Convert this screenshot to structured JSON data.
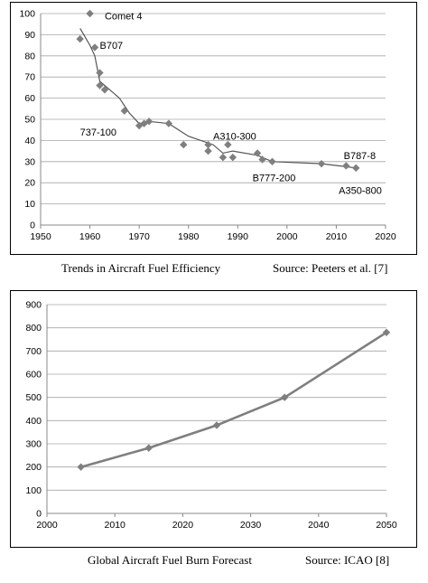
{
  "figure_1": {
    "caption_left": "Trends in Aircraft Fuel Efficiency",
    "caption_right": "Source: Peeters et al. [7]"
  },
  "figure_2": {
    "caption_left": "Global Aircraft Fuel Burn Forecast",
    "caption_right": "Source: ICAO [8]"
  },
  "colors": {
    "series": "#7f7f7f",
    "gridline": "#a6a6a6",
    "axis": "#888888",
    "frame": "#000000"
  },
  "chart_data": [
    {
      "type": "scatter",
      "title": "",
      "xlabel": "",
      "ylabel": "",
      "xlim": [
        1950,
        2020
      ],
      "ylim": [
        0,
        100
      ],
      "xticks": [
        1950,
        1960,
        1970,
        1980,
        1990,
        2000,
        2010,
        2020
      ],
      "yticks": [
        0,
        10,
        20,
        30,
        40,
        50,
        60,
        70,
        80,
        90,
        100
      ],
      "grid": "horizontal",
      "legend": "none",
      "points": [
        {
          "x": 1958,
          "y": 88
        },
        {
          "x": 1960,
          "y": 100
        },
        {
          "x": 1961,
          "y": 84
        },
        {
          "x": 1962,
          "y": 72
        },
        {
          "x": 1962,
          "y": 66
        },
        {
          "x": 1963,
          "y": 64
        },
        {
          "x": 1967,
          "y": 54
        },
        {
          "x": 1970,
          "y": 47
        },
        {
          "x": 1971,
          "y": 48
        },
        {
          "x": 1972,
          "y": 49
        },
        {
          "x": 1976,
          "y": 48
        },
        {
          "x": 1979,
          "y": 38
        },
        {
          "x": 1984,
          "y": 38
        },
        {
          "x": 1984,
          "y": 35
        },
        {
          "x": 1987,
          "y": 32
        },
        {
          "x": 1988,
          "y": 38
        },
        {
          "x": 1989,
          "y": 32
        },
        {
          "x": 1994,
          "y": 34
        },
        {
          "x": 1995,
          "y": 31
        },
        {
          "x": 1997,
          "y": 30
        },
        {
          "x": 2007,
          "y": 29
        },
        {
          "x": 2012,
          "y": 28
        },
        {
          "x": 2014,
          "y": 27
        }
      ],
      "trend_line": [
        {
          "x": 1958,
          "y": 93
        },
        {
          "x": 1959,
          "y": 89
        },
        {
          "x": 1960,
          "y": 85
        },
        {
          "x": 1961,
          "y": 80
        },
        {
          "x": 1962,
          "y": 68
        },
        {
          "x": 1964,
          "y": 64
        },
        {
          "x": 1966,
          "y": 60
        },
        {
          "x": 1968,
          "y": 53
        },
        {
          "x": 1970,
          "y": 48
        },
        {
          "x": 1972,
          "y": 49
        },
        {
          "x": 1976,
          "y": 48
        },
        {
          "x": 1980,
          "y": 42
        },
        {
          "x": 1985,
          "y": 38
        },
        {
          "x": 1987,
          "y": 34
        },
        {
          "x": 1989,
          "y": 35
        },
        {
          "x": 1994,
          "y": 33
        },
        {
          "x": 1997,
          "y": 30
        },
        {
          "x": 2007,
          "y": 29
        },
        {
          "x": 2014,
          "y": 27
        }
      ],
      "annotations": [
        {
          "text": "Comet 4",
          "x": 1963,
          "y": 99
        },
        {
          "text": "B707",
          "x": 1962,
          "y": 85
        },
        {
          "text": "737-100",
          "x": 1958,
          "y": 44
        },
        {
          "text": "A310-300",
          "x": 1985,
          "y": 42
        },
        {
          "text": "B777-200",
          "x": 1993,
          "y": 22.5
        },
        {
          "text": "B787-8",
          "x": 2011.5,
          "y": 33
        },
        {
          "text": "A350-800",
          "x": 2010.5,
          "y": 16.5
        }
      ]
    },
    {
      "type": "line",
      "title": "",
      "xlabel": "",
      "ylabel": "",
      "xlim": [
        2000,
        2050
      ],
      "ylim": [
        0,
        900
      ],
      "xticks": [
        2000,
        2010,
        2020,
        2030,
        2040,
        2050
      ],
      "yticks": [
        0,
        100,
        200,
        300,
        400,
        500,
        600,
        700,
        800,
        900
      ],
      "grid": "horizontal",
      "legend": "none",
      "x": [
        2005,
        2015,
        2025,
        2035,
        2050
      ],
      "series": [
        {
          "values": [
            200,
            282,
            380,
            500,
            780
          ]
        }
      ]
    }
  ]
}
